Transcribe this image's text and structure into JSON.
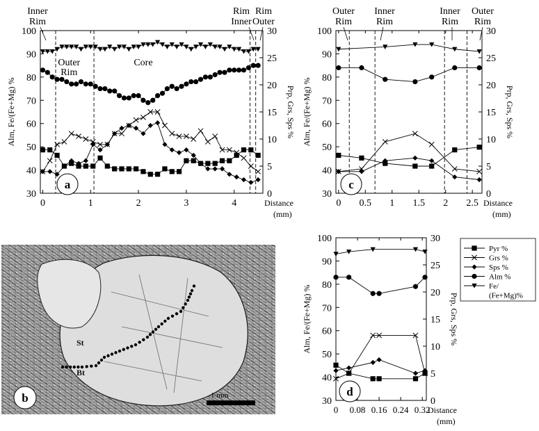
{
  "figure": {
    "panel_labels": [
      "a",
      "b",
      "c",
      "d"
    ],
    "distance_label": "Distance",
    "distance_unit": "(mm)",
    "left_axis_label": "Alm, Fe/(Fe+Mg) %",
    "right_axis_label": "Prp, Grs, Sps %",
    "micrograph_labels": [
      "St",
      "Bt"
    ],
    "scale_bar_label": "1 mm",
    "legend": [
      {
        "marker": "square",
        "text": "Pyr %"
      },
      {
        "marker": "cross",
        "text": "Grs %"
      },
      {
        "marker": "diamond",
        "text": "Sps %"
      },
      {
        "marker": "circle",
        "text": "Alm %"
      },
      {
        "marker": "triangle",
        "text": "Fe/"
      },
      {
        "marker": "",
        "text": "(Fe+Mg)%"
      }
    ]
  },
  "chart_data": [
    {
      "panel": "a",
      "type": "line",
      "xlabel": "Distance",
      "xunit": "(mm)",
      "ylabel": "Alm, Fe/(Fe+Mg) %",
      "y2label": "Prp, Grs, Sps %",
      "xlim": [
        -0.05,
        4.6
      ],
      "ylim": [
        30,
        100
      ],
      "y2lim": [
        0,
        30
      ],
      "xticks": [
        0,
        1,
        2,
        3,
        4
      ],
      "yticks": [
        30,
        40,
        50,
        60,
        70,
        80,
        90,
        100
      ],
      "y2ticks": [
        0,
        5,
        10,
        15,
        20,
        25,
        30
      ],
      "zone_lines": [
        0.27,
        1.07,
        4.33,
        4.45
      ],
      "annotations": [
        {
          "text": "Inner",
          "x": 0.0
        },
        {
          "text": "Rim",
          "x": 0.0
        },
        {
          "text": "Outer",
          "x": 0.55
        },
        {
          "text": "Rim",
          "x": 0.55
        },
        {
          "text": "Core",
          "x": 2.1
        },
        {
          "text": "Inner",
          "x": 4.22
        },
        {
          "text": "Rim",
          "x": 4.22
        },
        {
          "text": "Outer",
          "x": 4.5
        },
        {
          "text": "Rim",
          "x": 4.5
        }
      ],
      "series": [
        {
          "name": "Fe/(Fe+Mg)%",
          "marker": "triangle",
          "axis": "left",
          "x": [
            0,
            0.1,
            0.2,
            0.3,
            0.4,
            0.5,
            0.6,
            0.7,
            0.8,
            0.9,
            1.0,
            1.1,
            1.2,
            1.3,
            1.4,
            1.5,
            1.6,
            1.7,
            1.8,
            1.9,
            2.0,
            2.1,
            2.2,
            2.3,
            2.4,
            2.5,
            2.6,
            2.7,
            2.8,
            2.9,
            3.0,
            3.1,
            3.2,
            3.3,
            3.4,
            3.5,
            3.6,
            3.7,
            3.8,
            3.9,
            4.0,
            4.1,
            4.2,
            4.3,
            4.4,
            4.5
          ],
          "y": [
            91,
            91,
            91,
            92,
            93,
            93,
            93,
            93,
            92,
            93,
            93,
            93,
            92,
            92,
            93,
            92,
            93,
            93,
            92,
            93,
            93,
            94,
            94,
            94,
            95,
            94,
            93,
            94,
            93,
            94,
            93,
            92,
            93,
            94,
            93,
            94,
            93,
            93,
            92,
            93,
            92,
            92,
            91,
            91,
            92,
            92
          ]
        },
        {
          "name": "Alm %",
          "marker": "circle",
          "axis": "left",
          "x": [
            0,
            0.1,
            0.2,
            0.3,
            0.4,
            0.5,
            0.6,
            0.7,
            0.8,
            0.9,
            1.0,
            1.1,
            1.2,
            1.3,
            1.4,
            1.5,
            1.6,
            1.7,
            1.8,
            1.9,
            2.0,
            2.1,
            2.2,
            2.3,
            2.4,
            2.5,
            2.6,
            2.7,
            2.8,
            2.9,
            3.0,
            3.1,
            3.2,
            3.3,
            3.4,
            3.5,
            3.6,
            3.7,
            3.8,
            3.9,
            4.0,
            4.1,
            4.2,
            4.3,
            4.4,
            4.5
          ],
          "y": [
            83,
            82,
            80,
            79,
            79,
            78,
            77,
            77,
            78,
            77,
            77,
            76,
            75,
            75,
            74,
            74,
            72,
            71,
            71,
            72,
            72,
            70,
            69,
            70,
            72,
            73,
            75,
            76,
            75,
            76,
            77,
            78,
            78,
            79,
            80,
            80,
            81,
            82,
            82,
            83,
            83,
            83,
            83,
            84,
            85,
            85
          ]
        },
        {
          "name": "Grs %",
          "marker": "cross",
          "axis": "right",
          "x": [
            0,
            0.15,
            0.3,
            0.45,
            0.6,
            0.75,
            0.9,
            1.05,
            1.2,
            1.35,
            1.5,
            1.65,
            1.8,
            1.95,
            2.1,
            2.25,
            2.4,
            2.55,
            2.7,
            2.85,
            3.0,
            3.15,
            3.3,
            3.45,
            3.6,
            3.75,
            3.9,
            4.05,
            4.2,
            4.35,
            4.5
          ],
          "y": [
            4,
            6,
            9,
            9.5,
            11,
            10.5,
            10,
            9.5,
            9,
            9,
            11,
            11,
            12.5,
            13.5,
            14,
            15,
            15,
            12.5,
            11,
            10.5,
            10.5,
            10,
            11.5,
            9.5,
            10.5,
            8,
            8,
            7.5,
            6.5,
            5,
            4
          ]
        },
        {
          "name": "Sps %",
          "marker": "diamond",
          "axis": "right",
          "x": [
            0,
            0.15,
            0.3,
            0.45,
            0.6,
            0.75,
            0.9,
            1.05,
            1.2,
            1.35,
            1.5,
            1.65,
            1.8,
            1.95,
            2.1,
            2.25,
            2.4,
            2.55,
            2.7,
            2.85,
            3.0,
            3.15,
            3.3,
            3.45,
            3.6,
            3.75,
            3.9,
            4.05,
            4.2,
            4.35,
            4.5
          ],
          "y": [
            4,
            4,
            3.5,
            5,
            6,
            5.5,
            6,
            9,
            8,
            9,
            11,
            12,
            12.5,
            12,
            11,
            12.5,
            13,
            9,
            8,
            7.5,
            8,
            7,
            5.5,
            4.5,
            4.5,
            4.5,
            3.5,
            3,
            2.5,
            2,
            2.5
          ]
        },
        {
          "name": "Pyr %",
          "marker": "square",
          "axis": "right",
          "x": [
            0,
            0.15,
            0.3,
            0.45,
            0.6,
            0.75,
            0.9,
            1.05,
            1.2,
            1.35,
            1.5,
            1.65,
            1.8,
            1.95,
            2.1,
            2.25,
            2.4,
            2.55,
            2.7,
            2.85,
            3.0,
            3.15,
            3.3,
            3.45,
            3.6,
            3.75,
            3.9,
            4.05,
            4.2,
            4.35,
            4.5
          ],
          "y": [
            8,
            8,
            7,
            5,
            5.5,
            5,
            5,
            5,
            6.5,
            5,
            4.5,
            4.5,
            4.5,
            4.5,
            4,
            3.5,
            3.5,
            4.5,
            4,
            4,
            6,
            6,
            5.5,
            5.5,
            5.5,
            6,
            6,
            7,
            8,
            8,
            7
          ]
        }
      ]
    },
    {
      "panel": "c",
      "type": "line",
      "xlabel": "Distance",
      "xunit": "(mm)",
      "ylabel": "Alm, Fe/(Fe+Mg) %",
      "y2label": "Prp, Grs, Sps %",
      "xlim": [
        -0.05,
        2.68
      ],
      "ylim": [
        30,
        100
      ],
      "y2lim": [
        0,
        30
      ],
      "xticks": [
        0,
        0.5,
        1,
        1.5,
        2,
        2.5
      ],
      "yticks": [
        30,
        40,
        50,
        60,
        70,
        80,
        90,
        100
      ],
      "y2ticks": [
        0,
        5,
        10,
        15,
        20,
        25,
        30
      ],
      "zone_lines": [
        0.2,
        0.68,
        1.98,
        2.4
      ],
      "annotations": [
        {
          "text": "Outer",
          "x": 0.0
        },
        {
          "text": "Rim",
          "x": 0.0
        },
        {
          "text": "Inner",
          "x": 0.55
        },
        {
          "text": "Rim",
          "x": 0.55
        },
        {
          "text": "Inner",
          "x": 2.05
        },
        {
          "text": "Rim",
          "x": 2.05
        },
        {
          "text": "Outer",
          "x": 2.55
        },
        {
          "text": "Rim",
          "x": 2.55
        }
      ],
      "series": [
        {
          "name": "Fe/(Fe+Mg)%",
          "marker": "triangle",
          "axis": "left",
          "x": [
            0,
            0.87,
            1.43,
            1.74,
            2.17,
            2.63
          ],
          "y": [
            92,
            93,
            94,
            94,
            92,
            91
          ]
        },
        {
          "name": "Alm %",
          "marker": "circle",
          "axis": "left",
          "x": [
            0,
            0.43,
            0.87,
            1.43,
            1.74,
            2.17,
            2.63
          ],
          "y": [
            84,
            84,
            79,
            78,
            80,
            84,
            84
          ]
        },
        {
          "name": "Grs %",
          "marker": "cross",
          "axis": "right",
          "x": [
            0,
            0.43,
            0.87,
            1.43,
            1.74,
            2.17,
            2.63
          ],
          "y": [
            4,
            4.5,
            9.5,
            11,
            9,
            4.5,
            4
          ]
        },
        {
          "name": "Sps %",
          "marker": "diamond",
          "axis": "right",
          "x": [
            0,
            0.43,
            0.87,
            1.43,
            1.74,
            2.17,
            2.63
          ],
          "y": [
            4,
            4,
            6,
            6.5,
            6,
            3,
            2.5
          ]
        },
        {
          "name": "Pyr %",
          "marker": "square",
          "axis": "right",
          "x": [
            0,
            0.43,
            0.87,
            1.43,
            1.74,
            2.17,
            2.63
          ],
          "y": [
            7,
            6.5,
            5.5,
            5,
            5,
            8,
            8.5
          ]
        }
      ]
    },
    {
      "panel": "d",
      "type": "line",
      "xlabel": "Distance",
      "xunit": "(mm)",
      "ylabel": "Alm, Fe/(Fe+Mg) %",
      "y2label": "Prp, Grs, Sps %",
      "xlim": [
        0,
        0.335
      ],
      "ylim": [
        30,
        100
      ],
      "y2lim": [
        0,
        30
      ],
      "xticks": [
        0,
        0.08,
        0.16,
        0.24,
        0.32
      ],
      "yticks": [
        30,
        40,
        50,
        60,
        70,
        80,
        90,
        100
      ],
      "y2ticks": [
        0,
        5,
        10,
        15,
        20,
        25,
        30
      ],
      "zone_lines": [],
      "annotations": [],
      "series": [
        {
          "name": "Fe/(Fe+Mg)%",
          "marker": "triangle",
          "axis": "left",
          "x": [
            0,
            0.048,
            0.137,
            0.295,
            0.33
          ],
          "y": [
            93,
            94,
            95,
            95,
            94
          ]
        },
        {
          "name": "Alm %",
          "marker": "circle",
          "axis": "left",
          "x": [
            0,
            0.048,
            0.137,
            0.16,
            0.295,
            0.33
          ],
          "y": [
            83,
            83,
            76,
            76,
            79,
            83
          ]
        },
        {
          "name": "Grs %",
          "marker": "cross",
          "axis": "right",
          "x": [
            0,
            0.048,
            0.137,
            0.16,
            0.295,
            0.33
          ],
          "y": [
            4,
            5,
            12,
            12,
            12,
            5
          ]
        },
        {
          "name": "Sps %",
          "marker": "diamond",
          "axis": "right",
          "x": [
            0,
            0.048,
            0.137,
            0.16,
            0.295,
            0.33
          ],
          "y": [
            5.5,
            6,
            7,
            7.5,
            5,
            5.5
          ]
        },
        {
          "name": "Pyr %",
          "marker": "square",
          "axis": "right",
          "x": [
            0,
            0.048,
            0.137,
            0.16,
            0.295,
            0.33
          ],
          "y": [
            6.5,
            5,
            4,
            4,
            4,
            5
          ]
        }
      ]
    }
  ]
}
